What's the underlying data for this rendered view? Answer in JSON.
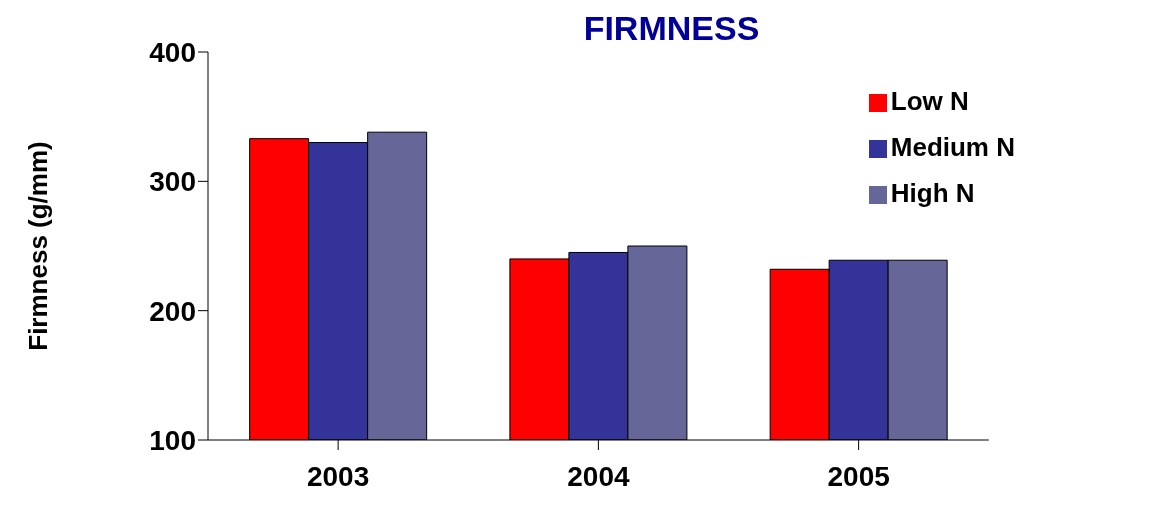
{
  "chart_data": {
    "type": "bar",
    "title": "FIRMNESS",
    "ylabel": "Firmness (g/mm)",
    "categories": [
      "2003",
      "2004",
      "2005"
    ],
    "series": [
      {
        "name": "Low N",
        "color": "#ff0000",
        "values": [
          333,
          240,
          232
        ]
      },
      {
        "name": "Medium N",
        "color": "#333399",
        "values": [
          330,
          245,
          239
        ]
      },
      {
        "name": "High N",
        "color": "#666699",
        "values": [
          338,
          250,
          239
        ]
      }
    ],
    "ylim": [
      100,
      400
    ],
    "yticks": [
      100,
      200,
      300,
      400
    ],
    "grid": false,
    "legend": "top right"
  }
}
